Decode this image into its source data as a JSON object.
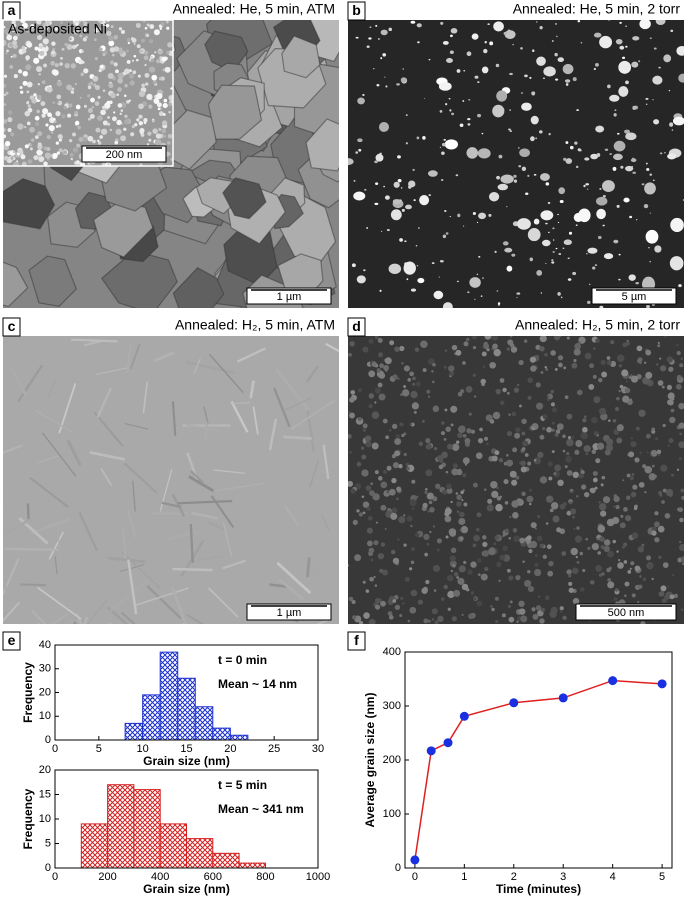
{
  "panels": [
    {
      "label": "a",
      "caption": "Annealed: He, 5 min, ATM",
      "scale": "1 µm",
      "inset_caption": "As-deposited Ni",
      "inset_scale": "200 nm"
    },
    {
      "label": "b",
      "caption": "Annealed: He, 5 min, 2 torr",
      "scale": "5 µm"
    },
    {
      "label": "c",
      "caption": "Annealed: H₂, 5 min, ATM",
      "scale": "1 µm"
    },
    {
      "label": "d",
      "caption": "Annealed: H₂, 5 min, 2 torr",
      "scale": "500 nm"
    },
    {
      "label": "e"
    },
    {
      "label": "f"
    }
  ],
  "chart_data": [
    {
      "type": "histogram",
      "bins": [
        8,
        10,
        12,
        14,
        16,
        18,
        20,
        22
      ],
      "values": [
        7,
        19,
        37,
        26,
        14,
        5,
        2
      ],
      "color": "#1a2fd0",
      "xlim": [
        0,
        30
      ],
      "xticks": [
        0,
        5,
        10,
        15,
        20,
        25,
        30
      ],
      "ylim": [
        0,
        40
      ],
      "yticks": [
        0,
        10,
        20,
        30,
        40
      ],
      "xlabel": "Grain size (nm)",
      "ylabel": "Frequency",
      "annotations": [
        "t = 0 min",
        "Mean ~ 14 nm"
      ]
    },
    {
      "type": "histogram",
      "bins": [
        100,
        200,
        300,
        400,
        500,
        600,
        700,
        800
      ],
      "values": [
        9,
        17,
        16,
        9,
        6,
        3,
        1
      ],
      "color": "#d42020",
      "xlim": [
        0,
        1000
      ],
      "xticks": [
        0,
        200,
        400,
        600,
        800,
        1000
      ],
      "ylim": [
        0,
        20
      ],
      "yticks": [
        0,
        5,
        10,
        15,
        20
      ],
      "xlabel": "Grain size (nm)",
      "ylabel": "Frequency",
      "annotations": [
        "t = 5 min",
        "Mean ~ 341 nm"
      ]
    },
    {
      "type": "line",
      "x": [
        0,
        0.33,
        0.67,
        1,
        2,
        3,
        4,
        5
      ],
      "values": [
        15,
        217,
        232,
        281,
        306,
        315,
        347,
        341
      ],
      "color": "#e02020",
      "marker_color": "#1a2fe0",
      "xlim": [
        -0.2,
        5.2
      ],
      "xticks": [
        0,
        1,
        2,
        3,
        4,
        5
      ],
      "ylim": [
        0,
        400
      ],
      "yticks": [
        0,
        100,
        200,
        300,
        400
      ],
      "xlabel": "Time (minutes)",
      "ylabel": "Average grain size (nm)"
    }
  ]
}
